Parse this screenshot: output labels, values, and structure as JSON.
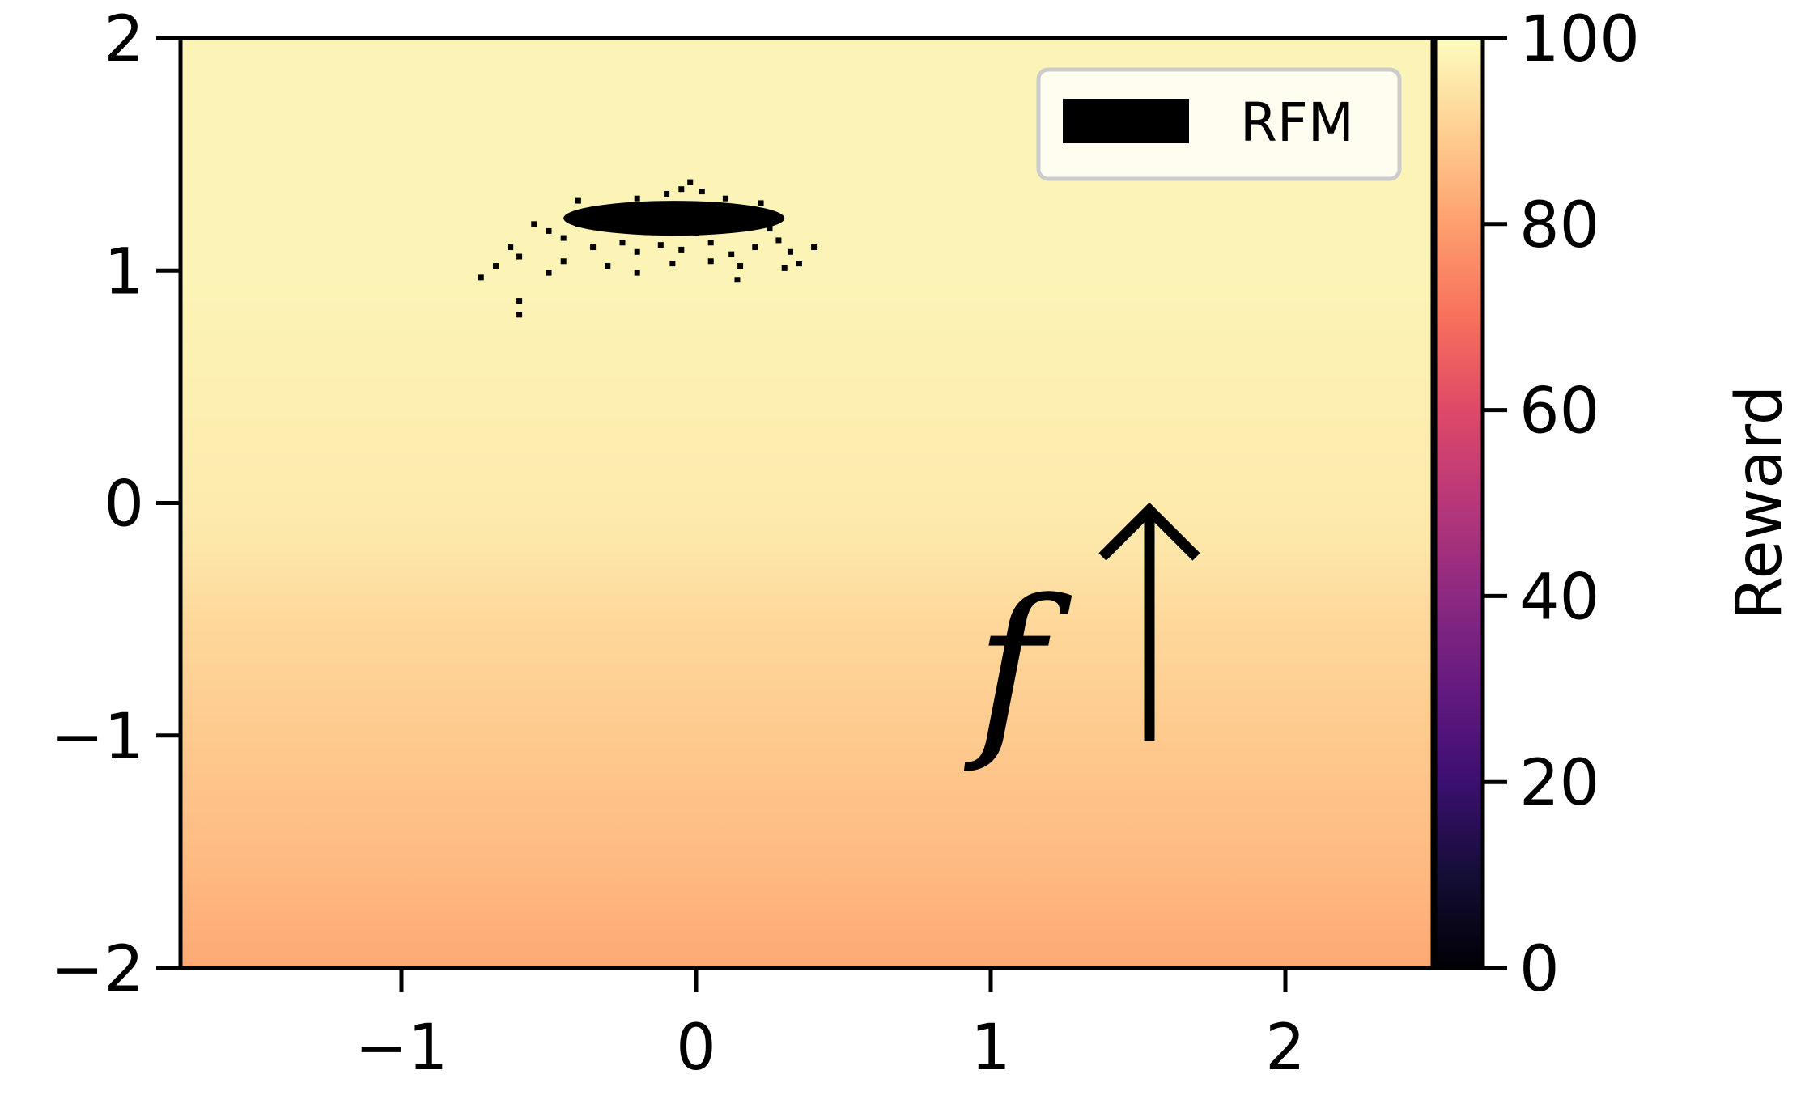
{
  "chart_data": {
    "type": "heatmap",
    "title": "",
    "xlabel": "",
    "ylabel": "",
    "xlim": [
      -1.75,
      2.5
    ],
    "ylim": [
      -2,
      2
    ],
    "x_ticks": [
      -1,
      0,
      1,
      2
    ],
    "y_ticks": [
      -2,
      -1,
      0,
      1,
      2
    ],
    "x_tick_labels": [
      "−1",
      "0",
      "1",
      "2"
    ],
    "y_tick_labels": [
      "−2",
      "−1",
      "0",
      "1",
      "2"
    ],
    "grid": false,
    "colormap": "magma",
    "heatmap": {
      "description_of_values": "reward varies with y only",
      "y": [
        2.0,
        1.0,
        0.5,
        0.0,
        -0.2,
        -0.5,
        -1.0,
        -1.5,
        -2.0
      ],
      "reward": [
        98,
        98,
        97,
        96,
        95,
        92,
        89,
        86,
        82
      ]
    },
    "colorbar": {
      "label": "Reward",
      "range": [
        0,
        100
      ],
      "ticks": [
        0,
        20,
        40,
        60,
        80,
        100
      ],
      "tick_labels": [
        "0",
        "20",
        "40",
        "60",
        "80",
        "100"
      ],
      "stops": [
        {
          "value": 0,
          "color": "#000004"
        },
        {
          "value": 10,
          "color": "#140e36"
        },
        {
          "value": 20,
          "color": "#3b0f70"
        },
        {
          "value": 30,
          "color": "#641a80"
        },
        {
          "value": 40,
          "color": "#8c2981"
        },
        {
          "value": 50,
          "color": "#b73779"
        },
        {
          "value": 60,
          "color": "#de4968"
        },
        {
          "value": 70,
          "color": "#f7705c"
        },
        {
          "value": 80,
          "color": "#fe9f6d"
        },
        {
          "value": 90,
          "color": "#fecf92"
        },
        {
          "value": 100,
          "color": "#fcfdbf"
        }
      ]
    },
    "legend": {
      "position": "top-right",
      "entries": [
        {
          "label": "RFM",
          "color": "#000000"
        }
      ]
    },
    "series": [
      {
        "name": "RFM",
        "type": "scatter",
        "color": "#000000",
        "dense_core": {
          "x_range": [
            -0.45,
            0.3
          ],
          "y_range": [
            1.15,
            1.3
          ]
        },
        "points": [
          [
            -0.4,
            1.2
          ],
          [
            -0.35,
            1.22
          ],
          [
            -0.3,
            1.25
          ],
          [
            -0.25,
            1.24
          ],
          [
            -0.2,
            1.27
          ],
          [
            -0.15,
            1.26
          ],
          [
            -0.1,
            1.28
          ],
          [
            -0.05,
            1.27
          ],
          [
            0.0,
            1.26
          ],
          [
            0.05,
            1.27
          ],
          [
            0.1,
            1.24
          ],
          [
            0.15,
            1.22
          ],
          [
            0.2,
            1.2
          ],
          [
            0.25,
            1.18
          ],
          [
            -0.1,
            1.33
          ],
          [
            -0.05,
            1.35
          ],
          [
            0.02,
            1.34
          ],
          [
            0.1,
            1.31
          ],
          [
            -0.2,
            1.31
          ],
          [
            -0.3,
            1.19
          ],
          [
            -0.5,
            1.17
          ],
          [
            -0.55,
            1.2
          ],
          [
            -0.45,
            1.14
          ],
          [
            -0.35,
            1.1
          ],
          [
            -0.25,
            1.12
          ],
          [
            -0.2,
            1.08
          ],
          [
            -0.12,
            1.11
          ],
          [
            -0.05,
            1.09
          ],
          [
            0.05,
            1.12
          ],
          [
            0.12,
            1.07
          ],
          [
            0.2,
            1.1
          ],
          [
            0.28,
            1.13
          ],
          [
            0.32,
            1.08
          ],
          [
            0.4,
            1.1
          ],
          [
            0.35,
            1.03
          ],
          [
            0.15,
            1.02
          ],
          [
            0.05,
            1.04
          ],
          [
            -0.08,
            1.03
          ],
          [
            -0.2,
            0.99
          ],
          [
            -0.3,
            1.02
          ],
          [
            -0.45,
            1.04
          ],
          [
            -0.6,
            1.06
          ],
          [
            -0.68,
            1.02
          ],
          [
            -0.73,
            0.97
          ],
          [
            -0.5,
            0.99
          ],
          [
            0.14,
            0.96
          ],
          [
            0.3,
            1.01
          ],
          [
            -0.6,
            0.87
          ],
          [
            -0.6,
            0.81
          ],
          [
            -0.63,
            1.1
          ],
          [
            0.0,
            1.16
          ],
          [
            -0.02,
            1.38
          ],
          [
            -0.4,
            1.3
          ],
          [
            0.22,
            1.29
          ]
        ]
      }
    ],
    "annotations": [
      {
        "text": "f",
        "style": "italic",
        "position": "lower-right",
        "arrow": "up"
      }
    ]
  }
}
